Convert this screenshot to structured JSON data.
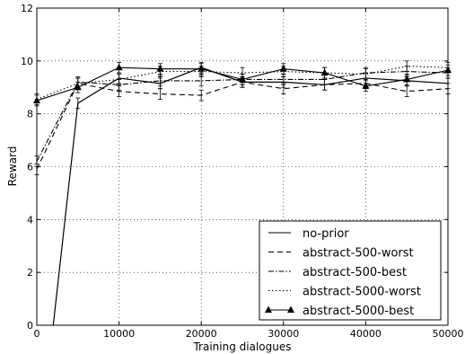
{
  "chart_data": {
    "type": "line",
    "title": "",
    "xlabel": "Training dialogues",
    "ylabel": "Reward",
    "xlim": [
      0,
      50000
    ],
    "ylim": [
      0,
      12
    ],
    "xticks": [
      0,
      10000,
      20000,
      30000,
      40000,
      50000
    ],
    "yticks": [
      0,
      2,
      4,
      6,
      8,
      10,
      12
    ],
    "grid": true,
    "legend_position": "lower-right",
    "x": [
      0,
      5000,
      10000,
      15000,
      20000,
      25000,
      30000,
      35000,
      40000,
      45000,
      50000
    ],
    "series": [
      {
        "name": "no-prior",
        "style": "solid",
        "marker": "none",
        "x": [
          2000,
          5000,
          10000,
          15000,
          20000,
          25000,
          30000,
          35000,
          40000,
          45000,
          50000
        ],
        "values": [
          0,
          8.4,
          9.35,
          9.15,
          9.75,
          9.2,
          9.2,
          9.1,
          9.35,
          9.25,
          9.15
        ]
      },
      {
        "name": "abstract-500-worst",
        "style": "dashed",
        "marker": "none",
        "values": [
          5.9,
          9.15,
          8.85,
          8.75,
          8.7,
          9.2,
          8.95,
          9.1,
          9.15,
          8.85,
          8.95
        ]
      },
      {
        "name": "abstract-500-best",
        "style": "dashdot",
        "marker": "none",
        "values": [
          6.2,
          9.2,
          9.1,
          9.25,
          9.25,
          9.3,
          9.3,
          9.3,
          9.55,
          9.6,
          9.55
        ]
      },
      {
        "name": "abstract-5000-worst",
        "style": "dotted",
        "marker": "none",
        "values": [
          8.55,
          9.15,
          9.3,
          9.6,
          9.6,
          9.55,
          9.6,
          9.55,
          9.5,
          9.8,
          9.75
        ]
      },
      {
        "name": "abstract-5000-best",
        "style": "solid",
        "marker": "triangle",
        "values": [
          8.5,
          9.0,
          9.75,
          9.7,
          9.7,
          9.3,
          9.7,
          9.55,
          9.05,
          9.3,
          9.65
        ]
      }
    ],
    "error_bar": 0.2
  }
}
